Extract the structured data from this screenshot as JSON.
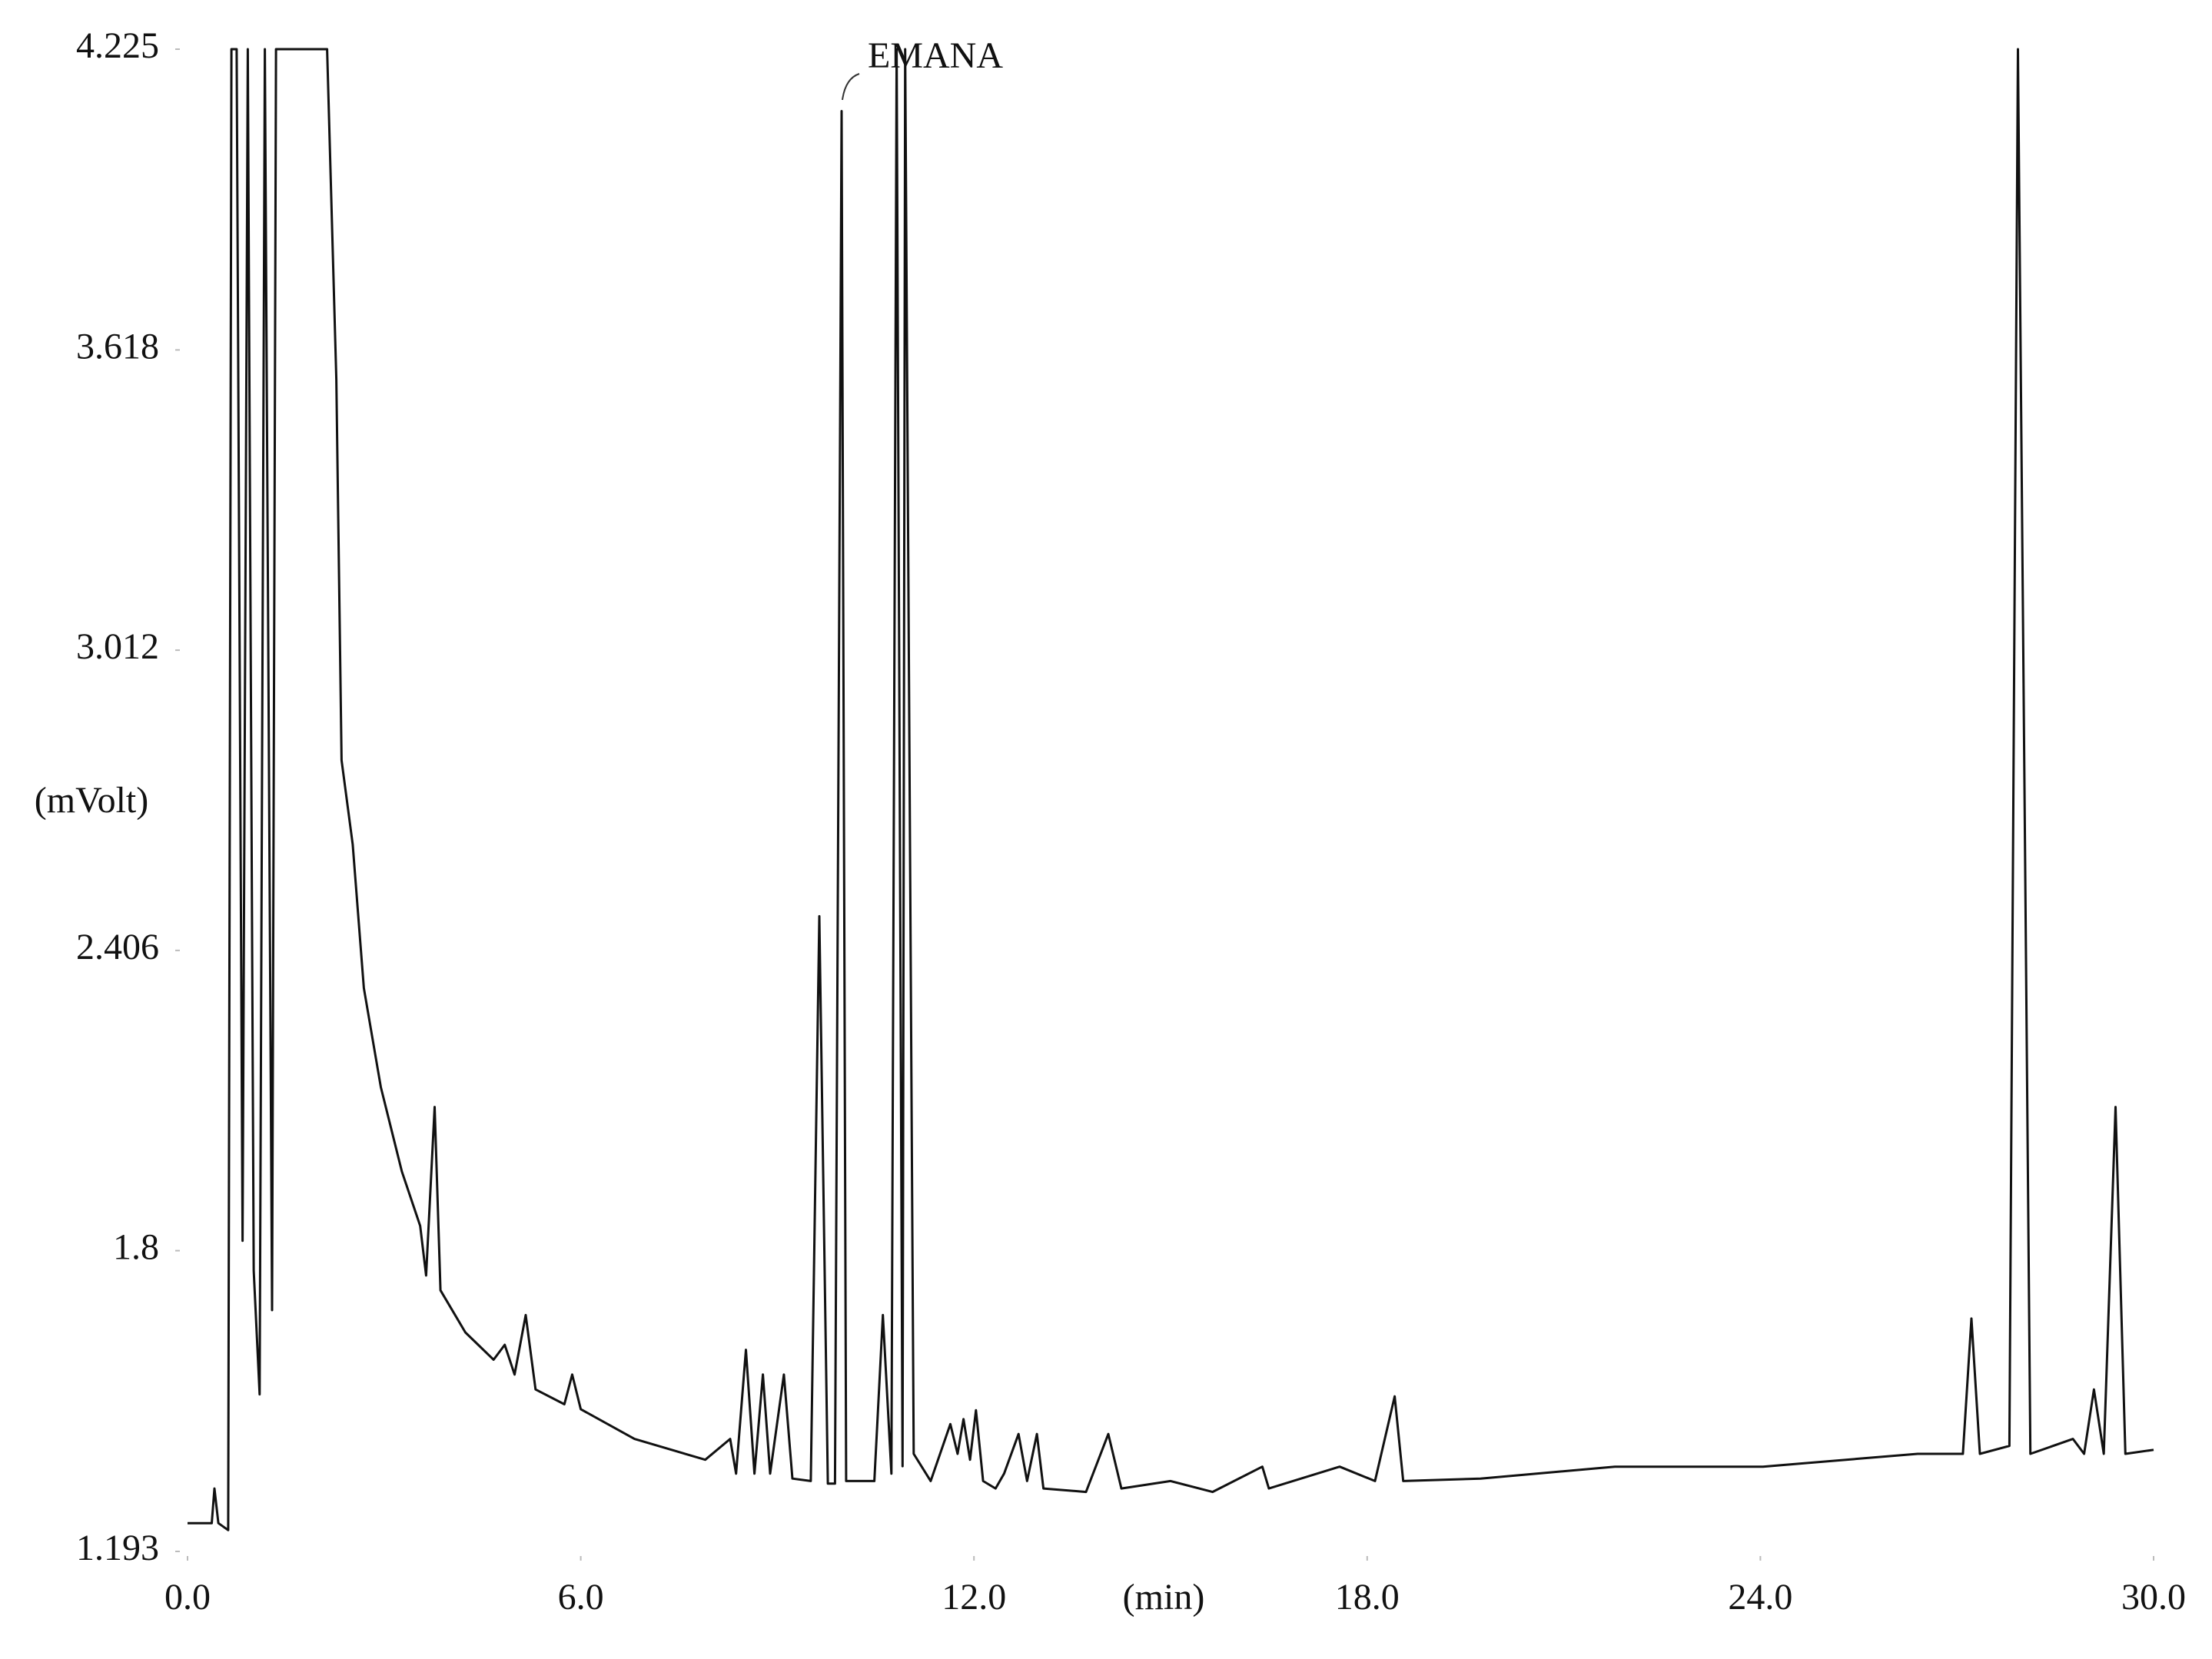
{
  "chart_data": {
    "type": "line",
    "y_label": "(mVolt)",
    "x_label": "(min)",
    "annotation": "EMANA",
    "color": "#111111",
    "xlim": [
      0,
      30
    ],
    "ylim": [
      1.193,
      4.225
    ],
    "yticks": [
      4.225,
      3.618,
      3.012,
      2.406,
      1.8,
      1.193
    ],
    "xticks": [
      {
        "value": 0,
        "label": "0.0"
      },
      {
        "value": 6,
        "label": "6.0"
      },
      {
        "value": 12,
        "label": "12.0"
      },
      {
        "value": 18,
        "label": "18.0"
      },
      {
        "value": 24,
        "label": "24.0"
      },
      {
        "value": 30,
        "label": "30.0"
      }
    ],
    "x": [
      0,
      0.37,
      0.41,
      0.47,
      0.62,
      0.67,
      0.75,
      0.84,
      0.92,
      1.01,
      1.1,
      1.18,
      1.29,
      1.35,
      2.13,
      2.27,
      2.35,
      2.52,
      2.69,
      2.95,
      3.27,
      3.55,
      3.64,
      3.77,
      3.86,
      4.24,
      4.67,
      4.84,
      4.99,
      5.16,
      5.31,
      5.75,
      5.87,
      6.0,
      6.82,
      7.9,
      8.28,
      8.37,
      8.52,
      8.65,
      8.78,
      8.89,
      9.1,
      9.23,
      9.51,
      9.64,
      9.77,
      9.88,
      9.98,
      10.05,
      10.48,
      10.61,
      10.74,
      10.82,
      10.91,
      10.95,
      11.08,
      11.34,
      11.64,
      11.75,
      11.84,
      11.94,
      12.03,
      12.14,
      12.33,
      12.46,
      12.68,
      12.81,
      12.96,
      13.06,
      13.71,
      14.05,
      14.25,
      15.0,
      15.64,
      16.4,
      16.5,
      17.58,
      18.12,
      18.42,
      18.55,
      19.73,
      21.78,
      24.04,
      26.4,
      27.09,
      27.22,
      27.35,
      27.8,
      27.93,
      28.12,
      28.77,
      28.94,
      29.09,
      29.24,
      29.42,
      29.57,
      30.0
    ],
    "values": [
      1.25,
      1.25,
      1.32,
      1.25,
      1.236,
      4.225,
      4.225,
      1.82,
      4.225,
      1.76,
      1.51,
      4.225,
      1.68,
      4.225,
      4.225,
      3.558,
      2.79,
      2.62,
      2.33,
      2.13,
      1.96,
      1.85,
      1.75,
      2.09,
      1.72,
      1.635,
      1.58,
      1.61,
      1.55,
      1.67,
      1.52,
      1.49,
      1.55,
      1.48,
      1.42,
      1.378,
      1.42,
      1.35,
      1.6,
      1.35,
      1.55,
      1.35,
      1.55,
      1.34,
      1.335,
      2.475,
      1.33,
      1.33,
      4.1,
      1.335,
      1.335,
      1.67,
      1.35,
      4.225,
      1.365,
      4.225,
      1.39,
      1.335,
      1.45,
      1.39,
      1.46,
      1.378,
      1.478,
      1.335,
      1.32,
      1.35,
      1.43,
      1.335,
      1.43,
      1.32,
      1.313,
      1.43,
      1.32,
      1.335,
      1.313,
      1.364,
      1.32,
      1.364,
      1.335,
      1.506,
      1.335,
      1.34,
      1.364,
      1.364,
      1.39,
      1.39,
      1.663,
      1.39,
      1.406,
      4.225,
      1.39,
      1.42,
      1.39,
      1.52,
      1.39,
      2.09,
      1.39,
      1.398
    ]
  }
}
